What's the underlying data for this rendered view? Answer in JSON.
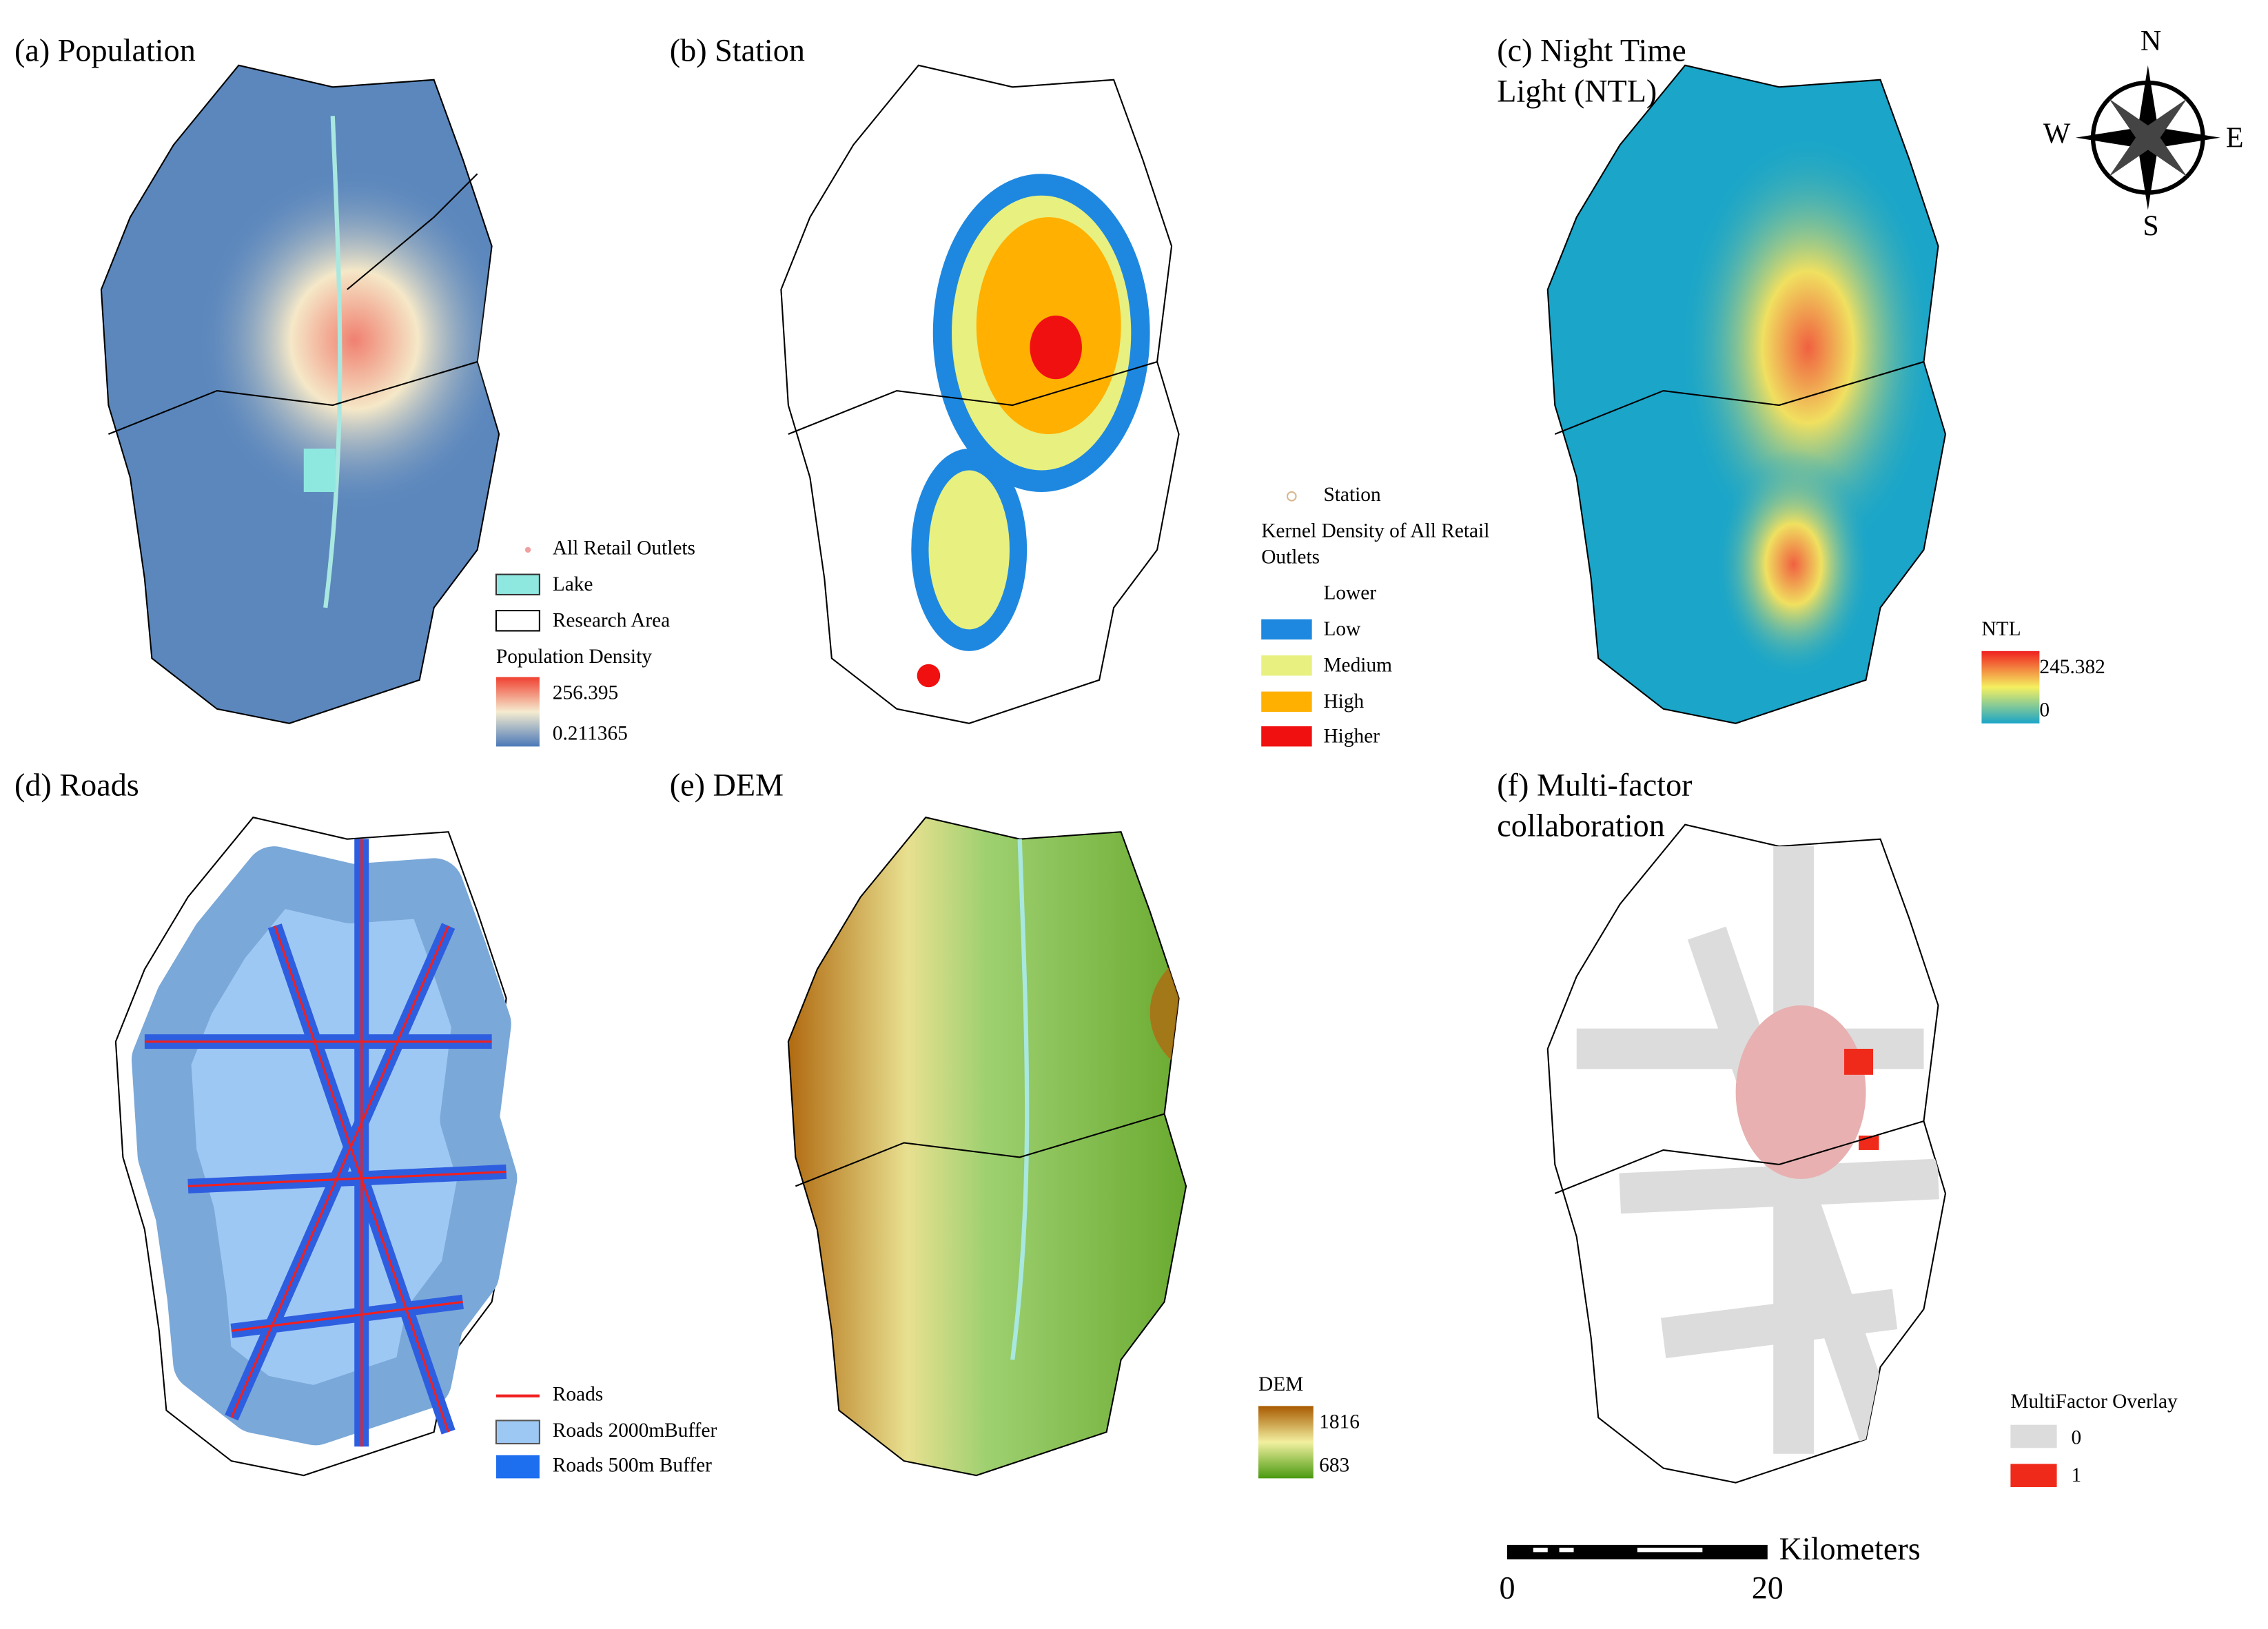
{
  "panels": [
    {
      "title": [
        "(a) Population"
      ],
      "legend": {
        "items": [
          "All Retail Outlets",
          "Lake",
          "Research Area"
        ],
        "heading": "Population Density",
        "max": "256.395",
        "min": "0.211365"
      }
    },
    {
      "title": [
        "(b) Station"
      ],
      "legend": {
        "items": [
          "Station"
        ],
        "heading": [
          "Kernel Density of All Retail",
          "Outlets"
        ],
        "classes": [
          "Lower",
          "Low",
          "Medium",
          "High",
          "Higher"
        ]
      }
    },
    {
      "title": [
        "(c) Night Time",
        "Light (NTL)"
      ],
      "legend": {
        "heading": "NTL",
        "max": "245.382",
        "min": "0"
      }
    },
    {
      "title": [
        "(d) Roads"
      ],
      "legend": {
        "items": [
          "Roads",
          "Roads 2000mBuffer",
          "Roads 500m Buffer"
        ]
      }
    },
    {
      "title": [
        "(e) DEM"
      ],
      "legend": {
        "heading": "DEM",
        "max": "1816",
        "min": "683"
      }
    },
    {
      "title": [
        "(f) Multi-factor",
        "collaboration"
      ],
      "legend": {
        "heading": "MultiFactor Overlay",
        "classes": [
          "0",
          "1"
        ]
      }
    }
  ],
  "compass": {
    "north": "N",
    "south": "S",
    "east": "E",
    "west": "W"
  },
  "scale_bar": {
    "unit": "Kilometers",
    "start": "0",
    "end": "20"
  }
}
